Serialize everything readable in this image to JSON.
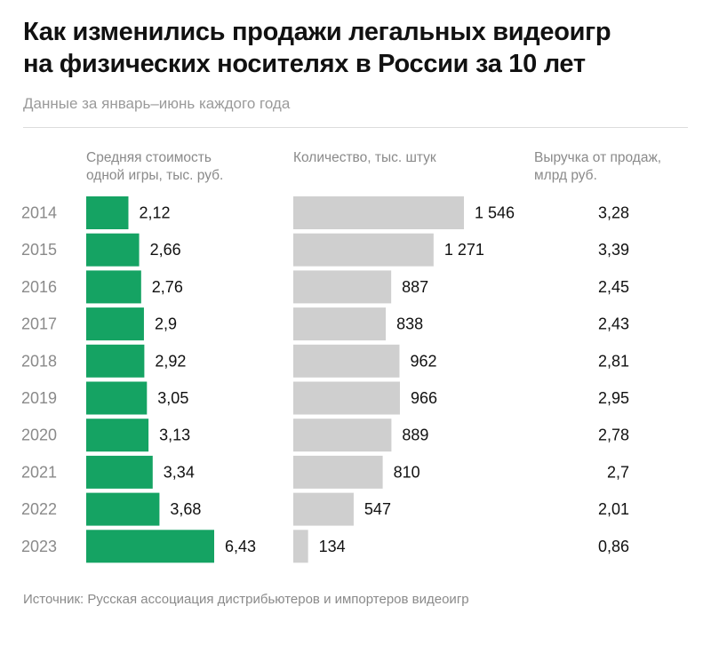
{
  "title_line1": "Как изменились продажи легальных видеоигр",
  "title_line2": "на физических носителях в России за 10 лет",
  "subtitle": "Данные за январь–июнь каждого года",
  "columns": {
    "price": {
      "line1": "Средняя стоимость",
      "line2": "одной игры, тыс. руб."
    },
    "qty": {
      "line1": "Количество, тыс. штук"
    },
    "revenue": {
      "line1": "Выручка от продаж,",
      "line2": "млрд руб."
    }
  },
  "source_text": "Источник: Русская ассоциация дистрибьютеров и импортеров видеоигр",
  "colors": {
    "price_bar": "#15a363",
    "qty_bar": "#cfcfcf",
    "year_text": "#8a8a8a"
  },
  "chart_data": {
    "type": "bar",
    "orientation": "horizontal",
    "categories": [
      "2014",
      "2015",
      "2016",
      "2017",
      "2018",
      "2019",
      "2020",
      "2021",
      "2022",
      "2023"
    ],
    "series": [
      {
        "name": "Средняя стоимость одной игры, тыс. руб.",
        "values": [
          2.12,
          2.66,
          2.76,
          2.9,
          2.92,
          3.05,
          3.13,
          3.34,
          3.68,
          6.43
        ],
        "labels": [
          "2,12",
          "2,66",
          "2,76",
          "2,9",
          "2,92",
          "3,05",
          "3,13",
          "3,34",
          "3,68",
          "6,43"
        ]
      },
      {
        "name": "Количество, тыс. штук",
        "values": [
          1546,
          1271,
          887,
          838,
          962,
          966,
          889,
          810,
          547,
          134
        ],
        "labels": [
          "1 546",
          "1 271",
          "887",
          "838",
          "962",
          "966",
          "889",
          "810",
          "547",
          "134"
        ]
      },
      {
        "name": "Выручка от продаж, млрд руб.",
        "values": [
          3.28,
          3.39,
          2.45,
          2.43,
          2.81,
          2.95,
          2.78,
          2.7,
          2.01,
          0.86
        ],
        "labels": [
          "3,28",
          "3,39",
          "2,45",
          "2,43",
          "2,81",
          "2,95",
          "2,78",
          "2,7",
          "2,01",
          "0,86"
        ]
      }
    ]
  }
}
